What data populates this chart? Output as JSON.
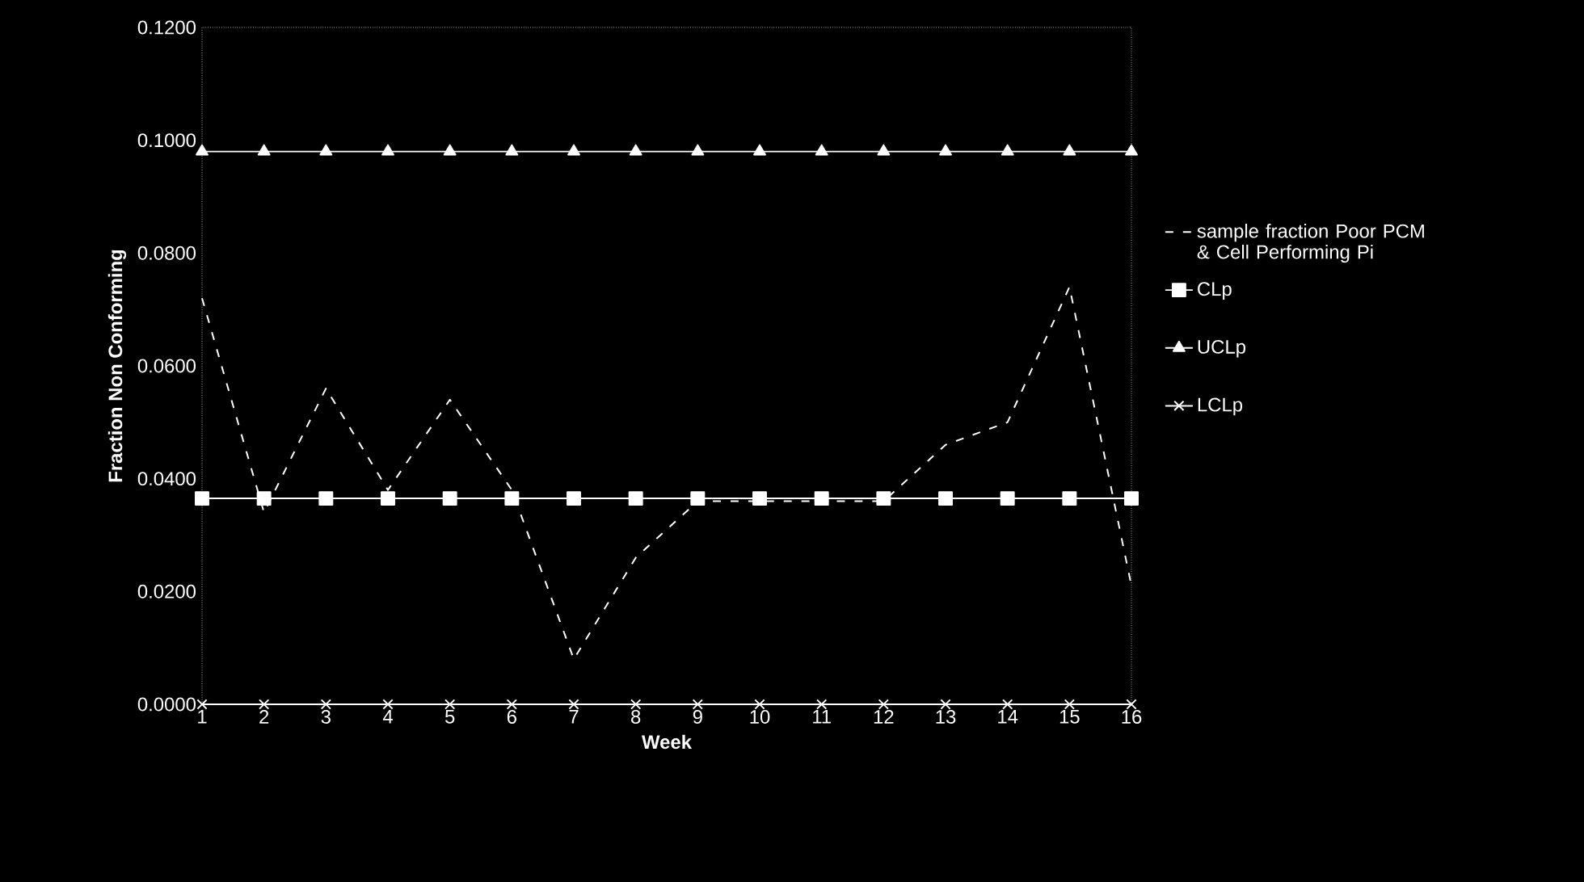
{
  "chart_data": {
    "type": "line",
    "xlabel": "Week",
    "ylabel": "Fraction Non Conforming",
    "x": [
      1,
      2,
      3,
      4,
      5,
      6,
      7,
      8,
      9,
      10,
      11,
      12,
      13,
      14,
      15,
      16
    ],
    "xlim": [
      1,
      16
    ],
    "xticks": [
      1,
      2,
      3,
      4,
      5,
      6,
      7,
      8,
      9,
      10,
      11,
      12,
      13,
      14,
      15,
      16
    ],
    "ylim": [
      0,
      0.12
    ],
    "yticks": [
      {
        "value": 0,
        "label": "0.0000"
      },
      {
        "value": 0.02,
        "label": "0.0200"
      },
      {
        "value": 0.04,
        "label": "0.0400"
      },
      {
        "value": 0.06,
        "label": "0.0600"
      },
      {
        "value": 0.08,
        "label": "0.0800"
      },
      {
        "value": 0.1,
        "label": "0.1000"
      },
      {
        "value": 0.12,
        "label": "0.1200"
      }
    ],
    "grid": false,
    "legend": "right",
    "series": [
      {
        "name": "sample fraction Poor PCM & Cell Performing Pi",
        "color": "#ffffff",
        "marker": "none",
        "line_style": "dashed",
        "values": [
          0.072,
          0.034,
          0.056,
          0.038,
          0.054,
          0.038,
          0.008,
          0.026,
          0.036,
          0.036,
          0.036,
          0.036,
          0.046,
          0.05,
          0.074,
          0.021
        ]
      },
      {
        "name": "CLp",
        "color": "#ffffff",
        "marker": "square",
        "line_style": "solid",
        "values": [
          0.0365,
          0.0365,
          0.0365,
          0.0365,
          0.0365,
          0.0365,
          0.0365,
          0.0365,
          0.0365,
          0.0365,
          0.0365,
          0.0365,
          0.0365,
          0.0365,
          0.0365,
          0.0365
        ]
      },
      {
        "name": "UCLp",
        "color": "#ffffff",
        "marker": "triangle",
        "line_style": "solid",
        "values": [
          0.098,
          0.098,
          0.098,
          0.098,
          0.098,
          0.098,
          0.098,
          0.098,
          0.098,
          0.098,
          0.098,
          0.098,
          0.098,
          0.098,
          0.098,
          0.098
        ]
      },
      {
        "name": "LCLp",
        "color": "#ffffff",
        "marker": "cross",
        "line_style": "solid",
        "values": [
          0,
          0,
          0,
          0,
          0,
          0,
          0,
          0,
          0,
          0,
          0,
          0,
          0,
          0,
          0,
          0
        ]
      }
    ]
  }
}
